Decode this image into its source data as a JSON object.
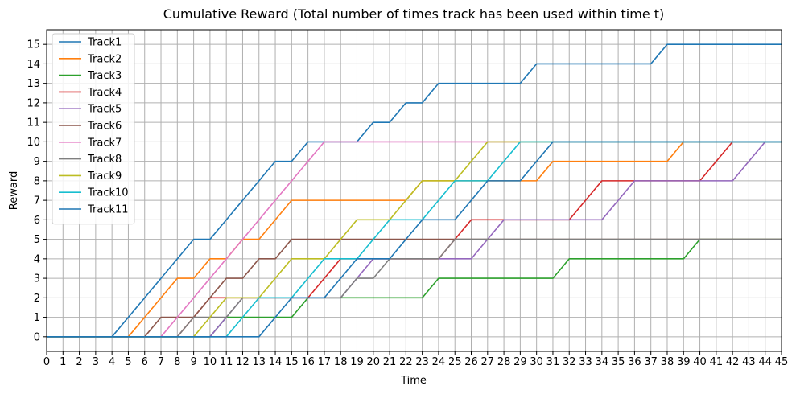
{
  "chart_data": {
    "type": "line",
    "title": "Cumulative Reward (Total number of times track has been used within time t)",
    "xlabel": "Time",
    "ylabel": "Reward",
    "xlim": [
      0,
      45
    ],
    "ylim": [
      -0.75,
      15.75
    ],
    "xticks": [
      0,
      1,
      2,
      3,
      4,
      5,
      6,
      7,
      8,
      9,
      10,
      11,
      12,
      13,
      14,
      15,
      16,
      17,
      18,
      19,
      20,
      21,
      22,
      23,
      24,
      25,
      26,
      27,
      28,
      29,
      30,
      31,
      32,
      33,
      34,
      35,
      36,
      37,
      38,
      39,
      40,
      41,
      42,
      43,
      44,
      45
    ],
    "yticks": [
      0,
      1,
      2,
      3,
      4,
      5,
      6,
      7,
      8,
      9,
      10,
      11,
      12,
      13,
      14,
      15
    ],
    "grid": true,
    "legend_position": "upper-left",
    "x": [
      0,
      1,
      2,
      3,
      4,
      5,
      6,
      7,
      8,
      9,
      10,
      11,
      12,
      13,
      14,
      15,
      16,
      17,
      18,
      19,
      20,
      21,
      22,
      23,
      24,
      25,
      26,
      27,
      28,
      29,
      30,
      31,
      32,
      33,
      34,
      35,
      36,
      37,
      38,
      39,
      40,
      41,
      42,
      43,
      44,
      45
    ],
    "series": [
      {
        "name": "Track1",
        "color": "#1f77b4",
        "values": [
          0,
          0,
          0,
          0,
          0,
          1,
          2,
          3,
          4,
          5,
          5,
          6,
          7,
          8,
          9,
          9,
          10,
          10,
          10,
          10,
          11,
          11,
          12,
          12,
          13,
          13,
          13,
          13,
          13,
          13,
          14,
          14,
          14,
          14,
          14,
          14,
          14,
          14,
          15,
          15,
          15,
          15,
          15,
          15,
          15,
          15
        ]
      },
      {
        "name": "Track2",
        "color": "#ff7f0e",
        "values": [
          0,
          0,
          0,
          0,
          0,
          0,
          1,
          2,
          3,
          3,
          4,
          4,
          5,
          5,
          6,
          7,
          7,
          7,
          7,
          7,
          7,
          7,
          7,
          8,
          8,
          8,
          8,
          8,
          8,
          8,
          8,
          9,
          9,
          9,
          9,
          9,
          9,
          9,
          9,
          10,
          10,
          10,
          10,
          10,
          10,
          10
        ]
      },
      {
        "name": "Track3",
        "color": "#2ca02c",
        "values": [
          0,
          0,
          0,
          0,
          0,
          0,
          0,
          0,
          0,
          0,
          0,
          1,
          1,
          1,
          1,
          1,
          2,
          2,
          2,
          2,
          2,
          2,
          2,
          2,
          3,
          3,
          3,
          3,
          3,
          3,
          3,
          3,
          4,
          4,
          4,
          4,
          4,
          4,
          4,
          4,
          5,
          5,
          5,
          5,
          5,
          5
        ]
      },
      {
        "name": "Track4",
        "color": "#d62728",
        "values": [
          0,
          0,
          0,
          0,
          0,
          0,
          0,
          0,
          0,
          1,
          2,
          2,
          2,
          2,
          2,
          2,
          2,
          3,
          4,
          4,
          4,
          4,
          4,
          4,
          4,
          5,
          6,
          6,
          6,
          6,
          6,
          6,
          6,
          7,
          8,
          8,
          8,
          8,
          8,
          8,
          8,
          9,
          10,
          10,
          10,
          10
        ]
      },
      {
        "name": "Track5",
        "color": "#9467bd",
        "values": [
          0,
          0,
          0,
          0,
          0,
          0,
          0,
          0,
          0,
          0,
          0,
          1,
          2,
          2,
          2,
          2,
          2,
          2,
          2,
          3,
          4,
          4,
          4,
          4,
          4,
          4,
          4,
          5,
          6,
          6,
          6,
          6,
          6,
          6,
          6,
          7,
          8,
          8,
          8,
          8,
          8,
          8,
          8,
          9,
          10,
          10
        ]
      },
      {
        "name": "Track6",
        "color": "#8c564b",
        "values": [
          0,
          0,
          0,
          0,
          0,
          0,
          0,
          1,
          1,
          1,
          2,
          3,
          3,
          4,
          4,
          5,
          5,
          5,
          5,
          5,
          5,
          5,
          5,
          5,
          5,
          5,
          5,
          5,
          5,
          5,
          5,
          5,
          5,
          5,
          5,
          5,
          5,
          5,
          5,
          5,
          5,
          5,
          5,
          5,
          5,
          5
        ]
      },
      {
        "name": "Track7",
        "color": "#e377c2",
        "values": [
          0,
          0,
          0,
          0,
          0,
          0,
          0,
          0,
          1,
          2,
          3,
          4,
          5,
          6,
          7,
          8,
          9,
          10,
          10,
          10,
          10,
          10,
          10,
          10,
          10,
          10,
          10,
          10,
          10,
          10,
          10,
          10,
          10,
          10,
          10,
          10,
          10,
          10,
          10,
          10,
          10,
          10,
          10,
          10,
          10,
          10
        ]
      },
      {
        "name": "Track8",
        "color": "#7f7f7f",
        "values": [
          0,
          0,
          0,
          0,
          0,
          0,
          0,
          0,
          0,
          1,
          1,
          1,
          2,
          2,
          2,
          2,
          2,
          2,
          2,
          3,
          3,
          4,
          4,
          4,
          4,
          5,
          5,
          5,
          5,
          5,
          5,
          5,
          5,
          5,
          5,
          5,
          5,
          5,
          5,
          5,
          5,
          5,
          5,
          5,
          5,
          5
        ]
      },
      {
        "name": "Track9",
        "color": "#bcbd22",
        "values": [
          0,
          0,
          0,
          0,
          0,
          0,
          0,
          0,
          0,
          0,
          1,
          2,
          2,
          2,
          3,
          4,
          4,
          4,
          5,
          6,
          6,
          6,
          7,
          8,
          8,
          8,
          9,
          10,
          10,
          10,
          10,
          10,
          10,
          10,
          10,
          10,
          10,
          10,
          10,
          10,
          10,
          10,
          10,
          10,
          10,
          10
        ]
      },
      {
        "name": "Track10",
        "color": "#17becf",
        "values": [
          0,
          0,
          0,
          0,
          0,
          0,
          0,
          0,
          0,
          0,
          0,
          0,
          1,
          2,
          2,
          2,
          3,
          4,
          4,
          4,
          5,
          6,
          6,
          6,
          7,
          8,
          8,
          8,
          9,
          10,
          10,
          10,
          10,
          10,
          10,
          10,
          10,
          10,
          10,
          10,
          10,
          10,
          10,
          10,
          10,
          10
        ]
      },
      {
        "name": "Track11",
        "color": "#1f77b4",
        "values": [
          0,
          0,
          0,
          0,
          0,
          0,
          0,
          0,
          0,
          0,
          0,
          0,
          0,
          0,
          1,
          2,
          2,
          2,
          3,
          4,
          4,
          4,
          5,
          6,
          6,
          6,
          7,
          8,
          8,
          8,
          9,
          10,
          10,
          10,
          10,
          10,
          10,
          10,
          10,
          10,
          10,
          10,
          10,
          10,
          10,
          10
        ]
      }
    ]
  }
}
